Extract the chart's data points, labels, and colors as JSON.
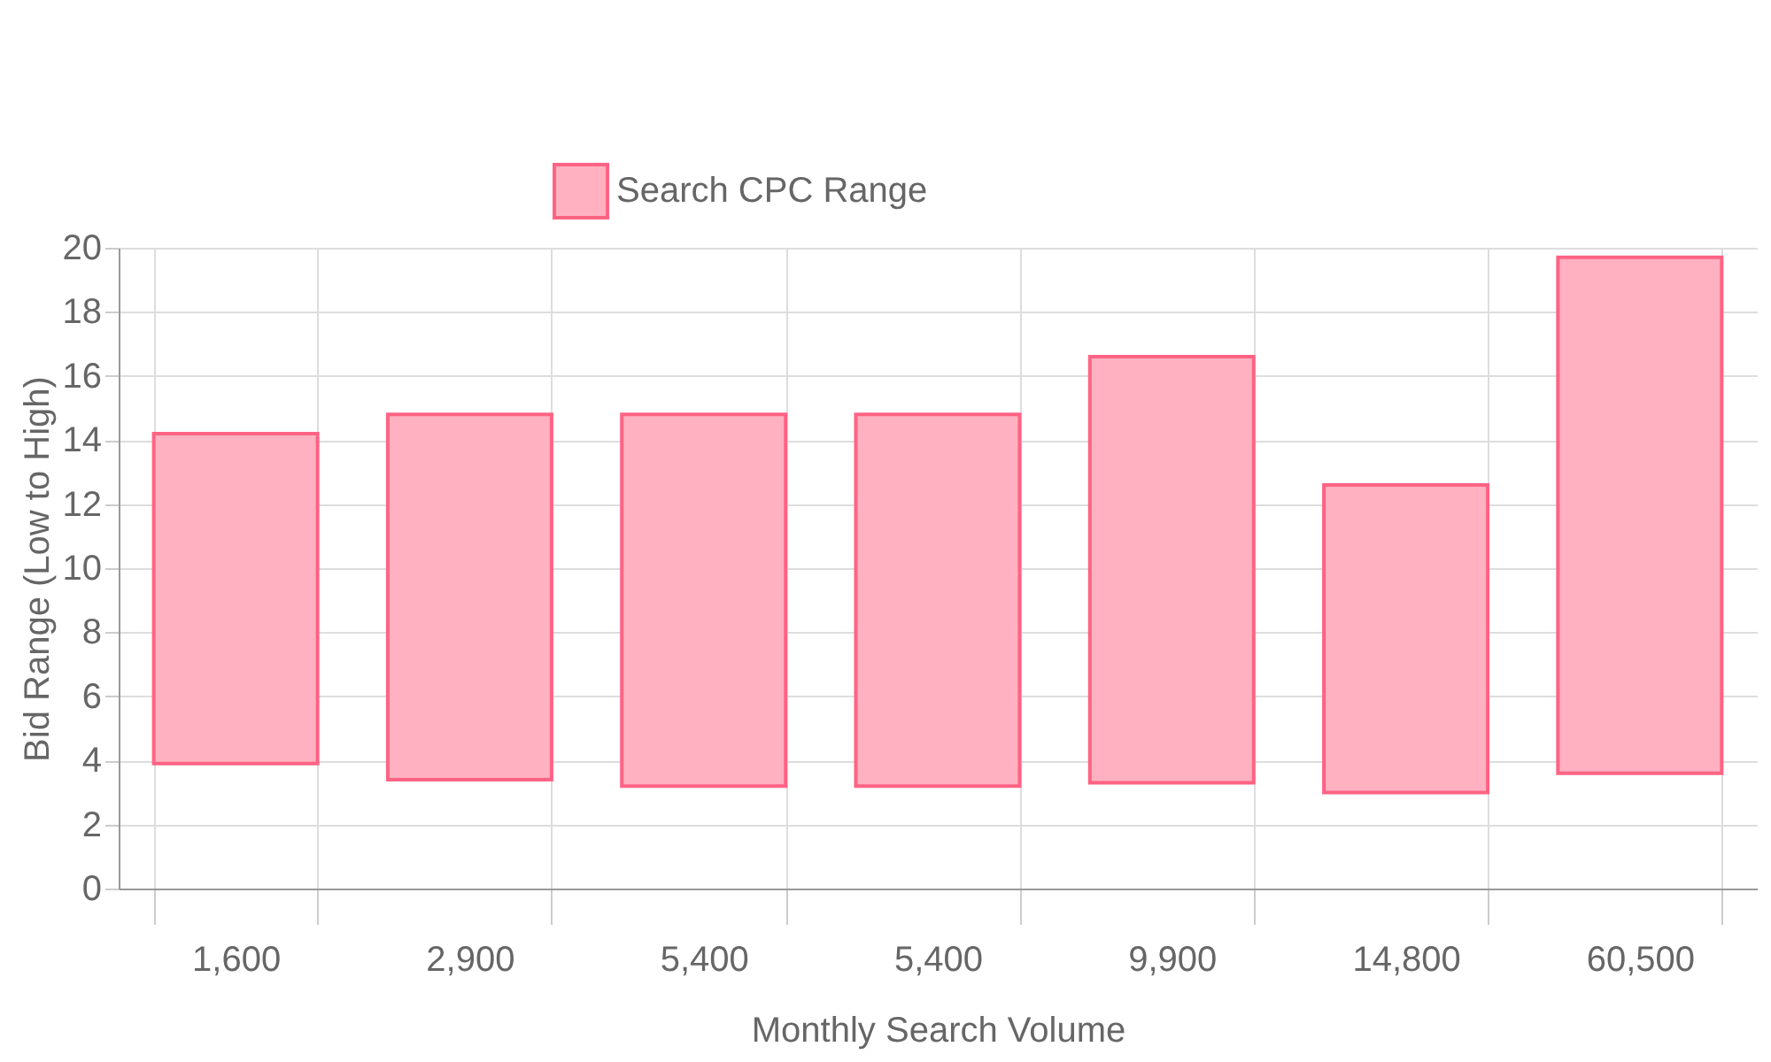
{
  "chart_data": {
    "type": "bar",
    "xlabel": "Monthly Search Volume",
    "ylabel": "Bid Range (Low to High)",
    "categories": [
      "1,600",
      "2,900",
      "5,400",
      "5,400",
      "9,900",
      "14,800",
      "60,500"
    ],
    "series": [
      {
        "name": "Search CPC Range",
        "color": "#ffb1c1",
        "values": [
          10.3,
          11.4,
          11.6,
          11.6,
          13.3,
          9.6,
          16.1
        ],
        "base": [
          3.9,
          3.4,
          3.2,
          3.2,
          3.3,
          3.0,
          3.6
        ]
      }
    ],
    "ylim": [
      0,
      20
    ],
    "yticks": [
      0,
      2,
      4,
      6,
      8,
      10,
      12,
      14,
      16,
      18,
      20
    ],
    "grid": true,
    "legend": "top"
  }
}
